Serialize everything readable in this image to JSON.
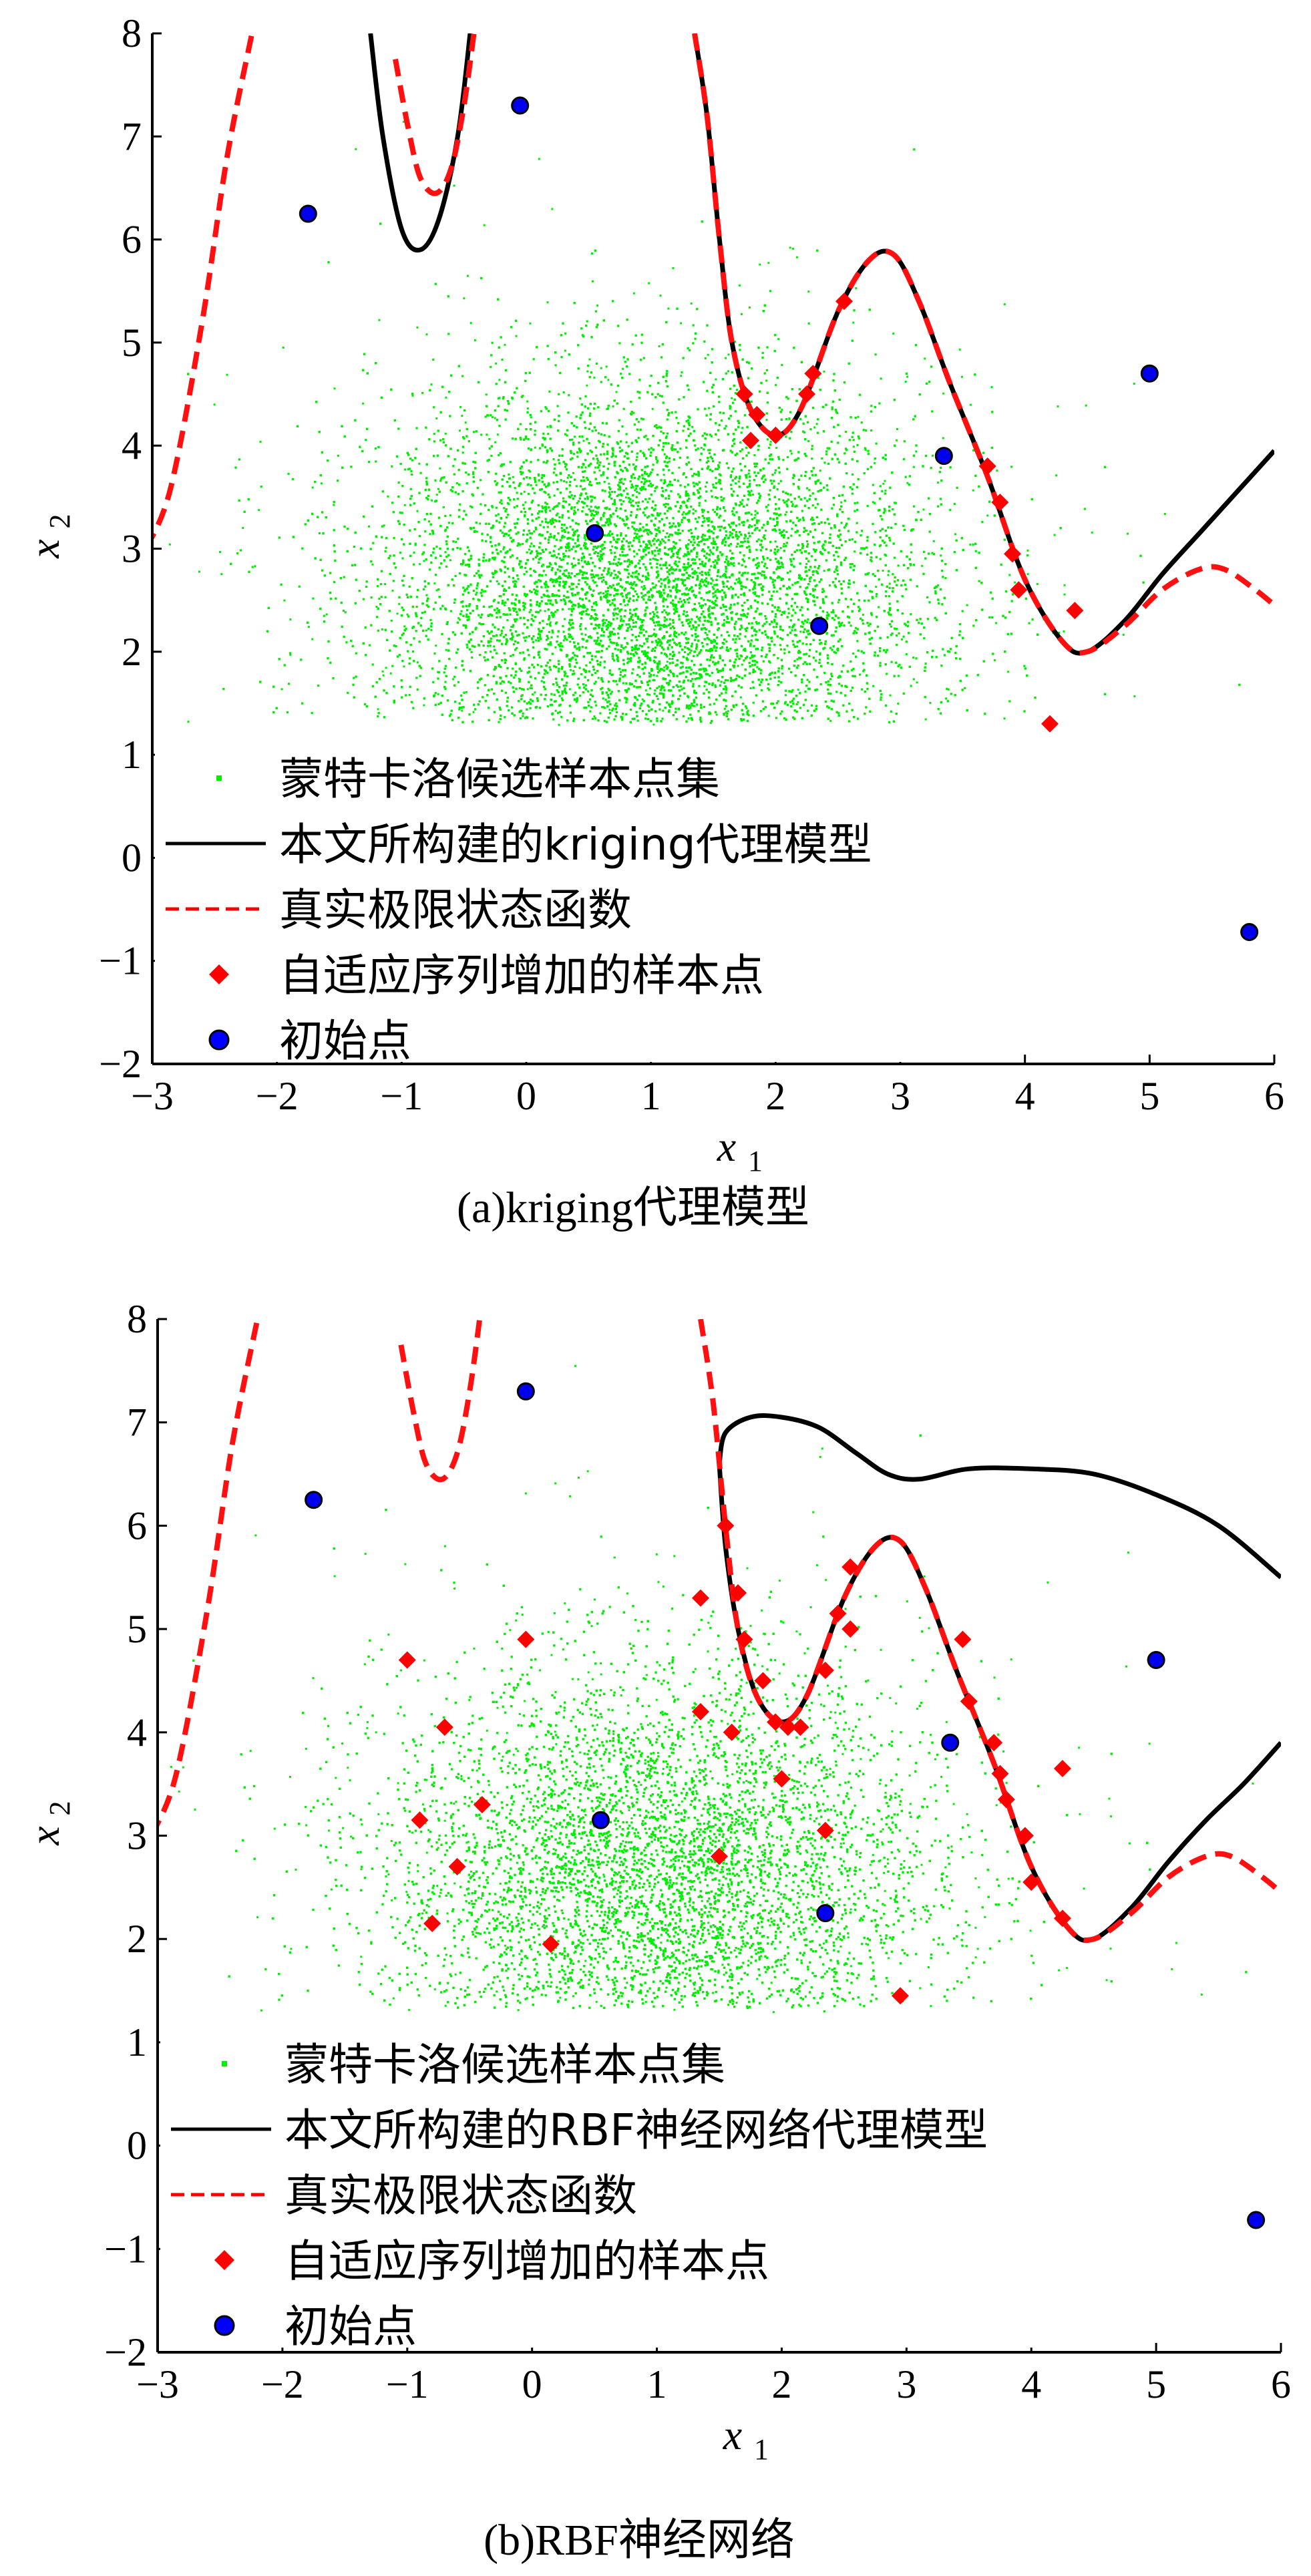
{
  "chart_data": [
    {
      "type": "scatter",
      "caption": "(a)kriging代理模型",
      "xlabel": "x",
      "xlabel_sub": "1",
      "ylabel": "x",
      "ylabel_sub": "2",
      "xlim": [
        -3,
        6
      ],
      "ylim": [
        -2,
        8
      ],
      "xticks": [
        "−3",
        "−2",
        "−1",
        "0",
        "1",
        "2",
        "3",
        "4",
        "5",
        "6"
      ],
      "yticks": [
        "−2",
        "−1",
        "0",
        "1",
        "2",
        "3",
        "4",
        "5",
        "6",
        "7",
        "8"
      ],
      "legend_position": "lower-left",
      "legend": [
        {
          "label": "蒙特卡洛候选样本点集",
          "marker": "dot",
          "color": "#00ee00"
        },
        {
          "label": "本文所构建的kriging代理模型",
          "marker": "line",
          "color": "#000000"
        },
        {
          "label": "真实极限状态函数",
          "marker": "dashed",
          "color": "#ff0000"
        },
        {
          "label": "自适应序列增加的样本点",
          "marker": "diamond",
          "color": "#ff0000"
        },
        {
          "label": "初始点",
          "marker": "circle",
          "color": "#0000ff"
        }
      ],
      "series": [
        {
          "name": "初始点",
          "points": [
            [
              -1.75,
              6.25
            ],
            [
              -0.05,
              7.3
            ],
            [
              0.55,
              3.15
            ],
            [
              2.35,
              2.25
            ],
            [
              3.35,
              3.9
            ],
            [
              5.0,
              4.7
            ],
            [
              5.8,
              -0.72
            ]
          ]
        },
        {
          "name": "自适应序列增加的样本点",
          "points": [
            [
              1.75,
              4.5
            ],
            [
              1.8,
              4.05
            ],
            [
              1.85,
              4.3
            ],
            [
              2.0,
              4.1
            ],
            [
              2.25,
              4.5
            ],
            [
              2.3,
              4.7
            ],
            [
              2.55,
              5.4
            ],
            [
              3.7,
              3.8
            ],
            [
              3.8,
              3.45
            ],
            [
              3.9,
              2.95
            ],
            [
              3.95,
              2.6
            ],
            [
              4.4,
              2.4
            ],
            [
              4.2,
              1.3
            ]
          ]
        }
      ]
    },
    {
      "type": "scatter",
      "caption": "(b)RBF神经网络",
      "xlabel": "x",
      "xlabel_sub": "1",
      "ylabel": "x",
      "ylabel_sub": "2",
      "xlim": [
        -3,
        6
      ],
      "ylim": [
        -2,
        8
      ],
      "xticks": [
        "−3",
        "−2",
        "−1",
        "0",
        "1",
        "2",
        "3",
        "4",
        "5",
        "6"
      ],
      "yticks": [
        "−2",
        "−1",
        "0",
        "1",
        "2",
        "3",
        "4",
        "5",
        "6",
        "7",
        "8"
      ],
      "legend_position": "lower-left",
      "legend": [
        {
          "label": "蒙特卡洛候选样本点集",
          "marker": "dot",
          "color": "#00ee00"
        },
        {
          "label": "本文所构建的RBF神经网络代理模型",
          "marker": "line",
          "color": "#000000"
        },
        {
          "label": "真实极限状态函数",
          "marker": "dashed",
          "color": "#ff0000"
        },
        {
          "label": "自适应序列增加的样本点",
          "marker": "diamond",
          "color": "#ff0000"
        },
        {
          "label": "初始点",
          "marker": "circle",
          "color": "#0000ff"
        }
      ],
      "series": [
        {
          "name": "初始点",
          "points": [
            [
              -1.75,
              6.25
            ],
            [
              -0.05,
              7.3
            ],
            [
              0.55,
              3.15
            ],
            [
              2.35,
              2.25
            ],
            [
              3.35,
              3.9
            ],
            [
              5.0,
              4.7
            ],
            [
              5.8,
              -0.72
            ]
          ]
        },
        {
          "name": "自适应序列增加的样本点",
          "points": [
            [
              -1.0,
              4.7
            ],
            [
              -0.7,
              4.05
            ],
            [
              -0.9,
              3.15
            ],
            [
              -0.4,
              3.3
            ],
            [
              -0.6,
              2.7
            ],
            [
              -0.8,
              2.15
            ],
            [
              -0.05,
              4.9
            ],
            [
              0.15,
              1.95
            ],
            [
              1.35,
              5.3
            ],
            [
              1.35,
              4.2
            ],
            [
              1.5,
              2.8
            ],
            [
              1.6,
              4.0
            ],
            [
              1.65,
              5.35
            ],
            [
              1.7,
              4.9
            ],
            [
              1.85,
              4.5
            ],
            [
              1.95,
              4.1
            ],
            [
              2.05,
              4.05
            ],
            [
              2.0,
              3.55
            ],
            [
              2.15,
              4.05
            ],
            [
              2.35,
              4.6
            ],
            [
              2.35,
              3.05
            ],
            [
              2.45,
              5.15
            ],
            [
              2.55,
              5.6
            ],
            [
              2.55,
              5.0
            ],
            [
              1.55,
              6.0
            ],
            [
              2.95,
              1.45
            ],
            [
              3.45,
              4.9
            ],
            [
              3.5,
              4.3
            ],
            [
              3.7,
              3.9
            ],
            [
              3.75,
              3.6
            ],
            [
              3.8,
              3.35
            ],
            [
              3.95,
              3.0
            ],
            [
              4.0,
              2.55
            ],
            [
              4.25,
              3.65
            ],
            [
              4.25,
              2.2
            ]
          ]
        }
      ]
    }
  ]
}
